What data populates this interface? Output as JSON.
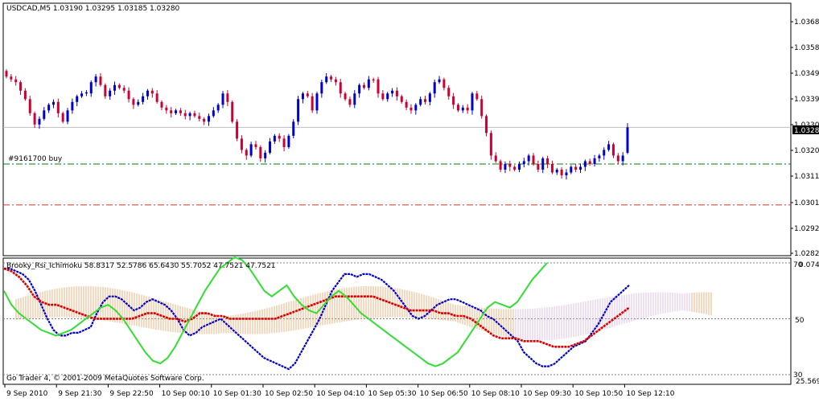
{
  "main": {
    "title": "USDCAD,M5  1.03190 1.03295 1.03185 1.03280",
    "order_label": "#9161700 buy",
    "current_price_label": "1.03280",
    "price_ticks": [
      "1.03680",
      "1.03585",
      "1.03490",
      "1.03395",
      "1.03300",
      "1.03205",
      "1.03110",
      "1.03015",
      "1.02920",
      "1.02825"
    ]
  },
  "indicator": {
    "title": "Brooky_Rsi_Ichimoku 58.8317 52.5786 65.6430 55.7052 47.7521 47.7521",
    "level_top": "70",
    "level_top_value": "0.0741",
    "level_mid": "50",
    "level_bottom": "30",
    "level_bottom_value": "25.5692",
    "copyright": "Go Trader 4, © 2001-2009 MetaQuotes Software Corp."
  },
  "time_axis": [
    "9 Sep 2010",
    "9 Sep 21:30",
    "9 Sep 22:50",
    "10 Sep 00:10",
    "10 Sep 01:30",
    "10 Sep 02:50",
    "10 Sep 04:10",
    "10 Sep 05:30",
    "10 Sep 06:50",
    "10 Sep 08:10",
    "10 Sep 09:30",
    "10 Sep 10:50",
    "10 Sep 12:10"
  ],
  "chart_data": [
    {
      "type": "candlestick",
      "symbol": "USDCAD",
      "timeframe": "M5",
      "last_bar": {
        "open": 1.0319,
        "high": 1.03295,
        "low": 1.03185,
        "close": 1.0328
      },
      "y_range": [
        1.02825,
        1.0372
      ],
      "bull_color": "#0000cc",
      "bear_color": "#cc0033",
      "order_line": {
        "label": "#9161700 buy",
        "price": 1.0315,
        "color": "#008000"
      },
      "stop_line": {
        "price": 1.03005,
        "color": "#dd3333"
      },
      "close_series": [
        1.0346,
        1.0345,
        1.0344,
        1.0341,
        1.0338,
        1.0333,
        1.0329,
        1.0331,
        1.0334,
        1.0336,
        1.0337,
        1.0333,
        1.033,
        1.0334,
        1.0337,
        1.0339,
        1.034,
        1.034,
        1.0344,
        1.0346,
        1.0343,
        1.0339,
        1.0341,
        1.0343,
        1.0342,
        1.0341,
        1.0338,
        1.0336,
        1.0337,
        1.0339,
        1.0341,
        1.034,
        1.0337,
        1.0335,
        1.0334,
        1.0333,
        1.0334,
        1.0333,
        1.0332,
        1.0333,
        1.0332,
        1.0331,
        1.033,
        1.0332,
        1.0334,
        1.0336,
        1.034,
        1.0337,
        1.033,
        1.0324,
        1.032,
        1.0318,
        1.0322,
        1.0321,
        1.0317,
        1.0319,
        1.0323,
        1.0325,
        1.0324,
        1.0321,
        1.0325,
        1.033,
        1.0338,
        1.034,
        1.0339,
        1.0334,
        1.034,
        1.0344,
        1.0346,
        1.0345,
        1.0344,
        1.034,
        1.0338,
        1.0336,
        1.034,
        1.0343,
        1.0342,
        1.0345,
        1.0345,
        1.034,
        1.0338,
        1.034,
        1.0341,
        1.0339,
        1.0337,
        1.0335,
        1.0334,
        1.0336,
        1.0338,
        1.0337,
        1.034,
        1.0344,
        1.0345,
        1.0342,
        1.0339,
        1.0336,
        1.0334,
        1.0335,
        1.0334,
        1.034,
        1.0338,
        1.0332,
        1.0326,
        1.0318,
        1.0316,
        1.0313,
        1.0315,
        1.0314,
        1.0313,
        1.0315,
        1.0316,
        1.0318,
        1.0315,
        1.0313,
        1.0317,
        1.0315,
        1.0312,
        1.0313,
        1.0311,
        1.0312,
        1.0314,
        1.0313,
        1.0314,
        1.0316,
        1.0315,
        1.0317,
        1.0318,
        1.032,
        1.0322,
        1.0318,
        1.0316,
        1.0318,
        1.0328
      ]
    },
    {
      "type": "line",
      "indicator": "Brooky_Rsi_Ichimoku",
      "y_range": [
        30,
        70
      ],
      "levels": [
        70,
        50,
        30
      ],
      "series": [
        {
          "color": "#0000cc",
          "values": [
            68,
            68,
            67,
            66,
            64,
            60,
            55,
            50,
            46,
            44,
            44,
            45,
            45,
            46,
            47,
            52,
            56,
            58,
            58,
            57,
            55,
            53,
            54,
            56,
            57,
            56,
            55,
            53,
            50,
            46,
            44,
            45,
            47,
            48,
            49,
            50,
            48,
            46,
            44,
            42,
            40,
            38,
            36,
            35,
            34,
            33,
            32,
            34,
            38,
            42,
            46,
            50,
            55,
            60,
            63,
            66,
            66,
            65,
            66,
            66,
            65,
            64,
            62,
            60,
            57,
            54,
            51,
            50,
            51,
            53,
            55,
            56,
            57,
            57,
            56,
            55,
            54,
            53,
            51,
            50,
            48,
            46,
            44,
            42,
            38,
            36,
            34,
            33,
            33,
            34,
            36,
            38,
            40,
            41,
            42,
            45,
            48,
            52,
            56,
            58,
            60,
            62
          ]
        },
        {
          "color": "#dd0000",
          "values": [
            68,
            67,
            65,
            62,
            58,
            56,
            55,
            55,
            54,
            53,
            52,
            51,
            50,
            50,
            50,
            50,
            50,
            50,
            51,
            52,
            52,
            51,
            50,
            50,
            49,
            50,
            52,
            52,
            51,
            51,
            50,
            50,
            50,
            50,
            50,
            50,
            50,
            51,
            52,
            53,
            54,
            55,
            56,
            57,
            58,
            58,
            58,
            58,
            58,
            58,
            57,
            56,
            55,
            54,
            53,
            53,
            53,
            53,
            52,
            52,
            51,
            51,
            50,
            48,
            46,
            44,
            43,
            43,
            43,
            42,
            42,
            42,
            41,
            40,
            40,
            40,
            41,
            42,
            44,
            46,
            48,
            50,
            52,
            54
          ]
        },
        {
          "color": "#33dd33",
          "values": [
            60,
            55,
            52,
            50,
            48,
            46,
            45,
            44,
            45,
            46,
            48,
            50,
            52,
            54,
            55,
            53,
            50,
            46,
            42,
            38,
            35,
            34,
            36,
            40,
            45,
            50,
            55,
            60,
            64,
            68,
            70,
            72,
            71,
            68,
            64,
            60,
            58,
            60,
            62,
            58,
            55,
            53,
            52,
            55,
            58,
            60,
            58,
            55,
            52,
            50,
            48,
            46,
            44,
            42,
            40,
            38,
            36,
            34,
            33,
            34,
            36,
            38,
            42,
            46,
            50,
            54,
            56,
            55,
            54,
            56,
            60,
            64,
            67,
            70
          ]
        }
      ]
    }
  ]
}
